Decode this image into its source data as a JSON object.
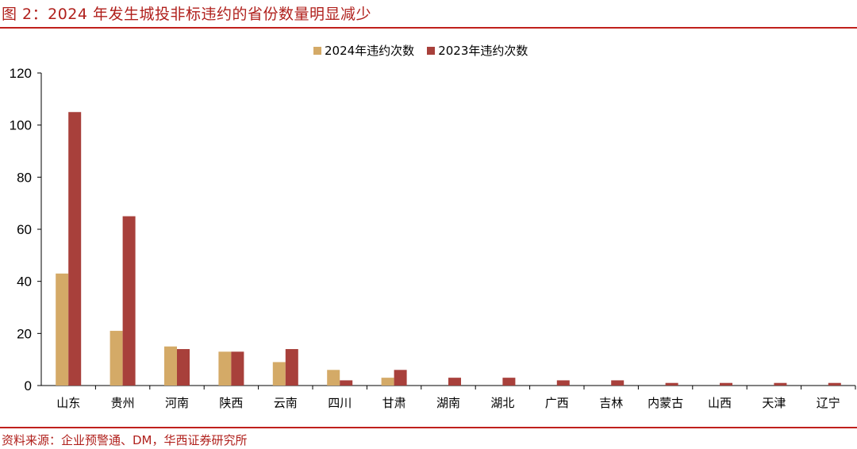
{
  "title": "图 2：2024 年发生城投非标违约的省份数量明显减少",
  "source": "资料来源：企业预警通、DM，华西证券研究所",
  "colors": {
    "series_2024": "#d4aa67",
    "series_2023": "#a8403b",
    "accent": "#c0201c"
  },
  "chart_data": {
    "type": "bar",
    "title": "",
    "xlabel": "",
    "ylabel": "",
    "ylim": [
      0,
      120
    ],
    "yticks": [
      0,
      20,
      40,
      60,
      80,
      100,
      120
    ],
    "grid": false,
    "legend_position": "top-center",
    "categories": [
      "山东",
      "贵州",
      "河南",
      "陕西",
      "云南",
      "四川",
      "甘肃",
      "湖南",
      "湖北",
      "广西",
      "吉林",
      "内蒙古",
      "山西",
      "天津",
      "辽宁"
    ],
    "series": [
      {
        "name": "2024年违约次数",
        "values": [
          43,
          21,
          15,
          13,
          9,
          6,
          3,
          0,
          0,
          0,
          0,
          0,
          0,
          0,
          0
        ]
      },
      {
        "name": "2023年违约次数",
        "values": [
          105,
          65,
          14,
          13,
          14,
          2,
          6,
          3,
          3,
          2,
          2,
          1,
          1,
          1,
          1
        ]
      }
    ]
  }
}
